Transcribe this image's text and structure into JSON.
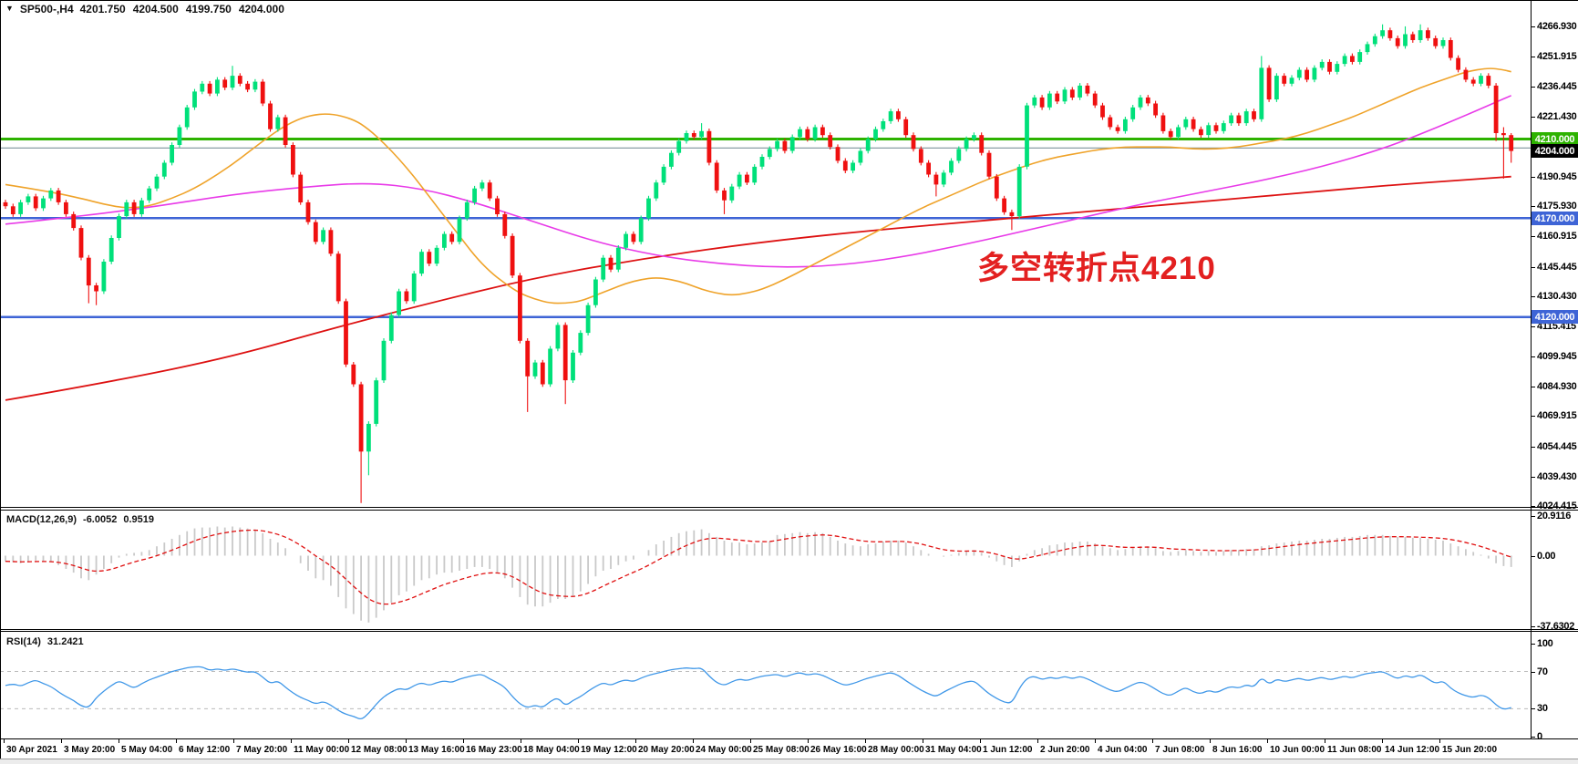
{
  "title": {
    "icon": "▼",
    "symbol": "SP500-,H4",
    "open": "4201.750",
    "high": "4204.500",
    "low": "4199.750",
    "close": "4204.000"
  },
  "annotation": {
    "text": "多空转折点4210",
    "color": "#e32020"
  },
  "price_axis": {
    "labels": [
      "4266.930",
      "4251.915",
      "4236.445",
      "4221.430",
      "4205.960",
      "4190.945",
      "4175.930",
      "4160.915",
      "4145.445",
      "4130.430",
      "4115.415",
      "4099.945",
      "4084.930",
      "4069.915",
      "4054.445",
      "4039.430",
      "4024.415"
    ]
  },
  "badges": [
    {
      "text": "4210.000",
      "price": 4210,
      "bg": "#2db200"
    },
    {
      "text": "4204.000",
      "price": 4204,
      "bg": "#000000"
    },
    {
      "text": "4170.000",
      "price": 4170,
      "bg": "#3e64d6"
    },
    {
      "text": "4120.000",
      "price": 4120,
      "bg": "#3e64d6"
    }
  ],
  "date_axis": {
    "labels": [
      "30 Apr 2021",
      "3 May 20:00",
      "5 May 04:00",
      "6 May 12:00",
      "7 May 20:00",
      "11 May 00:00",
      "12 May 08:00",
      "13 May 16:00",
      "16 May 23:00",
      "18 May 04:00",
      "19 May 12:00",
      "20 May 20:00",
      "24 May 00:00",
      "25 May 08:00",
      "26 May 16:00",
      "28 May 00:00",
      "31 May 04:00",
      "1 Jun 12:00",
      "2 Jun 20:00",
      "4 Jun 04:00",
      "7 Jun 08:00",
      "8 Jun 16:00",
      "10 Jun 00:00",
      "11 Jun 08:00",
      "14 Jun 12:00",
      "15 Jun 20:00"
    ]
  },
  "indicators": {
    "macd": {
      "label": "MACD(12,26,9)",
      "value_main": "-6.0052",
      "value_signal": "0.9519",
      "axis_labels": [
        {
          "text": "20.9116",
          "value": 20.9116
        },
        {
          "text": "0.00",
          "value": 0
        },
        {
          "text": "-37.6302",
          "value": -37.6302
        }
      ],
      "bar_color": "#c9c9c9",
      "signal_color": "#e01010"
    },
    "rsi": {
      "label": "RSI(14)",
      "value": "31.2421",
      "axis_labels": [
        {
          "text": "100",
          "value": 100
        },
        {
          "text": "70",
          "value": 70
        },
        {
          "text": "30",
          "value": 30
        },
        {
          "text": "0",
          "value": 0
        }
      ],
      "dashed_levels": [
        70,
        30
      ],
      "line_color": "#3f97e8"
    }
  },
  "chart_data": {
    "type": "candlestick+indicators",
    "symbol": "SP500-",
    "timeframe": "H4",
    "x_range": {
      "start": "30 Apr 2021",
      "end": "16 Jun 2021"
    },
    "ylim": [
      4024.0,
      4280.3
    ],
    "up_color": "#00e07a",
    "down_color": "#ef1010",
    "open_first": 4178,
    "closes": [
      4176,
      4172,
      4178,
      4181,
      4175,
      4180,
      4184,
      4178,
      4172,
      4165,
      4150,
      4136,
      4133,
      4148,
      4160,
      4171,
      4178,
      4172,
      4179,
      4185,
      4191,
      4198,
      4207,
      4216,
      4226,
      4234,
      4238,
      4233,
      4240,
      4236,
      4242,
      4238,
      4235,
      4239,
      4228,
      4215,
      4221,
      4207,
      4192,
      4178,
      4168,
      4158,
      4164,
      4152,
      4128,
      4096,
      4086,
      4052,
      4066,
      4088,
      4108,
      4121,
      4133,
      4128,
      4142,
      4153,
      4147,
      4155,
      4162,
      4158,
      4170,
      4178,
      4185,
      4188,
      4180,
      4172,
      4161,
      4141,
      4108,
      4090,
      4097,
      4086,
      4104,
      4116,
      4088,
      4102,
      4112,
      4126,
      4139,
      4150,
      4144,
      4155,
      4162,
      4158,
      4170,
      4180,
      4188,
      4196,
      4203,
      4209,
      4213,
      4211,
      4214,
      4198,
      4184,
      4179,
      4186,
      4192,
      4188,
      4196,
      4201,
      4205,
      4209,
      4204,
      4211,
      4215,
      4210,
      4216,
      4212,
      4206,
      4199,
      4194,
      4198,
      4204,
      4210,
      4215,
      4219,
      4224,
      4220,
      4212,
      4205,
      4198,
      4192,
      4187,
      4193,
      4199,
      4205,
      4210,
      4212,
      4203,
      4191,
      4180,
      4173,
      4171,
      4196,
      4227,
      4231,
      4226,
      4233,
      4229,
      4235,
      4231,
      4237,
      4233,
      4227,
      4221,
      4216,
      4214,
      4220,
      4226,
      4231,
      4228,
      4222,
      4214,
      4211,
      4216,
      4220,
      4215,
      4212,
      4217,
      4214,
      4218,
      4222,
      4218,
      4224,
      4220,
      4246,
      4230,
      4242,
      4238,
      4241,
      4245,
      4240,
      4246,
      4249,
      4244,
      4248,
      4252,
      4249,
      4254,
      4258,
      4262,
      4265,
      4261,
      4257,
      4263,
      4260,
      4265,
      4261,
      4257,
      4260,
      4251,
      4245,
      4240,
      4238,
      4242,
      4237,
      4213,
      4212,
      4204
    ],
    "spikes": {
      "11": [
        null,
        4127
      ],
      "12": [
        null,
        4126
      ],
      "30": [
        4247,
        null
      ],
      "47": [
        null,
        4026
      ],
      "48": [
        null,
        4040
      ],
      "69": [
        null,
        4072
      ],
      "74": [
        null,
        4076
      ],
      "92": [
        4218,
        null
      ],
      "95": [
        null,
        4172
      ],
      "123": [
        null,
        4181
      ],
      "133": [
        null,
        4164
      ],
      "166": [
        4252,
        null
      ],
      "182": [
        4268,
        null
      ],
      "185": [
        4267,
        null
      ],
      "187": [
        4268,
        null
      ],
      "197": [
        null,
        4209
      ],
      "198": [
        4216,
        4190
      ],
      "199": [
        4213,
        4198
      ]
    },
    "hlines": [
      {
        "price": 4210,
        "color": "#2db200",
        "width": 3
      },
      {
        "price": 4205.5,
        "color": "#7e939c",
        "width": 1.2
      },
      {
        "price": 4170,
        "color": "#3e64d6",
        "width": 2.5
      },
      {
        "price": 4120,
        "color": "#3e64d6",
        "width": 2.5
      }
    ],
    "ma_colors": {
      "red": "#dd1111",
      "magenta": "#e83ae8",
      "orange": "#efa32a"
    },
    "ma_red": [
      [
        0,
        4078
      ],
      [
        15,
        4088
      ],
      [
        30,
        4100
      ],
      [
        43,
        4114
      ],
      [
        55,
        4126
      ],
      [
        70,
        4140
      ],
      [
        85,
        4150
      ],
      [
        100,
        4158
      ],
      [
        115,
        4164
      ],
      [
        130,
        4169
      ],
      [
        145,
        4174
      ],
      [
        160,
        4179
      ],
      [
        172,
        4183
      ],
      [
        184,
        4187
      ],
      [
        199,
        4191
      ]
    ],
    "ma_magenta": [
      [
        0,
        4167
      ],
      [
        10,
        4171
      ],
      [
        20,
        4176
      ],
      [
        30,
        4182
      ],
      [
        40,
        4186
      ],
      [
        48,
        4188
      ],
      [
        55,
        4185
      ],
      [
        62,
        4178
      ],
      [
        70,
        4168
      ],
      [
        78,
        4158
      ],
      [
        86,
        4151
      ],
      [
        94,
        4147
      ],
      [
        102,
        4145
      ],
      [
        110,
        4146
      ],
      [
        118,
        4150
      ],
      [
        126,
        4156
      ],
      [
        134,
        4163
      ],
      [
        142,
        4170
      ],
      [
        150,
        4177
      ],
      [
        158,
        4183
      ],
      [
        166,
        4189
      ],
      [
        174,
        4196
      ],
      [
        182,
        4205
      ],
      [
        188,
        4214
      ],
      [
        193,
        4222
      ],
      [
        199,
        4232
      ]
    ],
    "ma_orange": [
      [
        0,
        4187
      ],
      [
        5,
        4184
      ],
      [
        10,
        4180
      ],
      [
        13,
        4177
      ],
      [
        16,
        4175
      ],
      [
        19,
        4176
      ],
      [
        22,
        4180
      ],
      [
        25,
        4185
      ],
      [
        28,
        4192
      ],
      [
        31,
        4200
      ],
      [
        34,
        4209
      ],
      [
        37,
        4217
      ],
      [
        40,
        4222
      ],
      [
        43,
        4223
      ],
      [
        46,
        4220
      ],
      [
        48,
        4215
      ],
      [
        50,
        4208
      ],
      [
        52,
        4200
      ],
      [
        54,
        4191
      ],
      [
        56,
        4181
      ],
      [
        58,
        4171
      ],
      [
        60,
        4161
      ],
      [
        62,
        4151
      ],
      [
        64,
        4143
      ],
      [
        66,
        4137
      ],
      [
        68,
        4132
      ],
      [
        70,
        4129
      ],
      [
        72,
        4127
      ],
      [
        74,
        4127
      ],
      [
        76,
        4128
      ],
      [
        78,
        4131
      ],
      [
        80,
        4134
      ],
      [
        82,
        4137
      ],
      [
        84,
        4139
      ],
      [
        86,
        4140
      ],
      [
        88,
        4139
      ],
      [
        90,
        4137
      ],
      [
        92,
        4134
      ],
      [
        94,
        4132
      ],
      [
        96,
        4131
      ],
      [
        98,
        4132
      ],
      [
        100,
        4134
      ],
      [
        103,
        4139
      ],
      [
        106,
        4145
      ],
      [
        109,
        4151
      ],
      [
        112,
        4157
      ],
      [
        115,
        4163
      ],
      [
        118,
        4169
      ],
      [
        121,
        4175
      ],
      [
        124,
        4180
      ],
      [
        127,
        4185
      ],
      [
        130,
        4190
      ],
      [
        133,
        4194
      ],
      [
        136,
        4198
      ],
      [
        139,
        4201
      ],
      [
        142,
        4203
      ],
      [
        145,
        4205
      ],
      [
        148,
        4206
      ],
      [
        151,
        4206
      ],
      [
        154,
        4206
      ],
      [
        157,
        4205
      ],
      [
        160,
        4205
      ],
      [
        163,
        4206
      ],
      [
        166,
        4208
      ],
      [
        169,
        4210
      ],
      [
        172,
        4213
      ],
      [
        175,
        4217
      ],
      [
        178,
        4221
      ],
      [
        181,
        4226
      ],
      [
        184,
        4231
      ],
      [
        187,
        4236
      ],
      [
        190,
        4240
      ],
      [
        193,
        4244
      ],
      [
        196,
        4246
      ],
      [
        198,
        4245
      ],
      [
        199,
        4244
      ]
    ],
    "macd": [
      -3,
      -3.5,
      -4,
      -3,
      -2.5,
      -3,
      -3.5,
      -5,
      -7,
      -9,
      -12,
      -13,
      -10,
      -7,
      -4,
      -1,
      1,
      1.5,
      2,
      3,
      5,
      7,
      9,
      11,
      13,
      14.5,
      15,
      15,
      15.5,
      15,
      15.5,
      15,
      14.5,
      14,
      12,
      9,
      7,
      4,
      0,
      -4,
      -8,
      -12,
      -13,
      -16,
      -22,
      -28,
      -31,
      -34.5,
      -35.5,
      -33,
      -29,
      -25,
      -21,
      -19,
      -16,
      -13,
      -12,
      -10,
      -9,
      -9,
      -8,
      -7,
      -6,
      -6,
      -7,
      -9,
      -12,
      -17,
      -22,
      -26,
      -27,
      -27,
      -25,
      -23,
      -23,
      -22,
      -19,
      -15,
      -11,
      -8,
      -7,
      -5,
      -3,
      -2,
      0,
      3,
      6,
      8,
      10,
      12,
      13,
      13.5,
      14,
      12,
      10,
      8,
      7,
      7,
      6,
      6.5,
      7,
      7.5,
      11,
      11.5,
      12,
      12.5,
      12,
      12.5,
      12,
      10,
      8,
      6.5,
      5.5,
      5,
      6,
      6.5,
      7.5,
      8,
      8,
      7,
      5,
      3,
      1,
      0,
      -0.5,
      0.5,
      1.5,
      2.5,
      3,
      1.5,
      -1,
      -3,
      -5,
      -6,
      -3,
      1,
      3,
      4,
      5.5,
      6,
      7,
      7,
      7.5,
      7.5,
      6.5,
      5,
      4,
      3,
      3.5,
      4,
      5,
      5,
      4,
      2.5,
      2,
      2.5,
      3,
      2.5,
      2,
      2.5,
      2,
      2.5,
      3,
      3,
      3.5,
      3.5,
      5,
      5.5,
      6.5,
      7,
      7.5,
      8,
      8,
      8.5,
      9,
      9,
      9.5,
      10,
      10,
      10.5,
      11,
      11,
      11,
      10.5,
      10,
      10,
      9.5,
      9.5,
      9,
      8.5,
      8,
      6.5,
      5,
      3.5,
      2,
      0.5,
      -1.5,
      -4,
      -5.5,
      -6
    ],
    "macd_ylim": [
      -39,
      24
    ],
    "rsi": [
      55,
      57,
      54,
      58,
      61,
      57,
      54,
      48,
      43,
      39,
      33,
      31,
      42,
      49,
      55,
      60,
      56,
      52,
      57,
      61,
      64,
      67,
      70,
      72,
      74,
      75,
      75,
      71,
      73,
      71,
      73,
      71,
      69,
      70,
      64,
      57,
      60,
      53,
      47,
      42,
      39,
      35,
      38,
      34,
      28,
      24,
      22,
      18,
      25,
      35,
      43,
      48,
      52,
      50,
      55,
      58,
      55,
      58,
      60,
      58,
      62,
      64,
      66,
      67,
      62,
      58,
      53,
      43,
      35,
      31,
      34,
      31,
      38,
      42,
      33,
      39,
      43,
      49,
      54,
      58,
      55,
      59,
      61,
      59,
      63,
      66,
      68,
      70,
      72,
      73,
      74,
      73,
      74,
      65,
      58,
      55,
      59,
      62,
      60,
      63,
      65,
      66,
      67,
      64,
      67,
      69,
      66,
      68,
      66,
      62,
      58,
      55,
      57,
      60,
      63,
      65,
      67,
      69,
      66,
      60,
      55,
      50,
      46,
      43,
      48,
      52,
      56,
      59,
      60,
      53,
      46,
      41,
      37,
      36,
      52,
      63,
      65,
      61,
      64,
      62,
      65,
      62,
      65,
      62,
      58,
      54,
      50,
      48,
      52,
      56,
      59,
      56,
      51,
      46,
      44,
      49,
      53,
      48,
      46,
      50,
      47,
      51,
      54,
      52,
      56,
      53,
      64,
      56,
      62,
      59,
      61,
      63,
      60,
      62,
      64,
      61,
      63,
      65,
      63,
      66,
      68,
      69,
      70,
      66,
      62,
      66,
      63,
      67,
      62,
      57,
      60,
      52,
      47,
      44,
      42,
      45,
      42,
      34,
      29,
      31.24
    ],
    "rsi_ylim": [
      -1.9,
      112.6
    ]
  }
}
